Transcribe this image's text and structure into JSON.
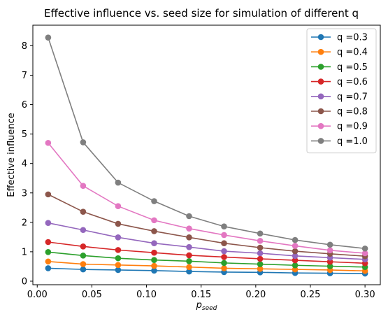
{
  "chart_data": {
    "type": "line",
    "title": "Effective influence vs. seed size for simulation of different q",
    "xlabel_main": "p",
    "xlabel_sub": "seed",
    "ylabel": "Effective influence",
    "xlim": [
      -0.004,
      0.314
    ],
    "ylim": [
      -0.12,
      8.7
    ],
    "xticks": [
      0.0,
      0.05,
      0.1,
      0.15,
      0.2,
      0.25,
      0.3
    ],
    "xtick_labels": [
      "0.00",
      "0.05",
      "0.10",
      "0.15",
      "0.20",
      "0.25",
      "0.30"
    ],
    "yticks": [
      0,
      1,
      2,
      3,
      4,
      5,
      6,
      7,
      8
    ],
    "ytick_labels": [
      "0",
      "1",
      "2",
      "3",
      "4",
      "5",
      "6",
      "7",
      "8"
    ],
    "grid": false,
    "legend_position": "top-right",
    "x": [
      0.01,
      0.042,
      0.074,
      0.107,
      0.139,
      0.171,
      0.204,
      0.236,
      0.268,
      0.3
    ],
    "series": [
      {
        "name": "q =0.3",
        "color": "#1f77b4",
        "values": [
          0.44,
          0.4,
          0.38,
          0.36,
          0.33,
          0.31,
          0.3,
          0.28,
          0.27,
          0.26
        ]
      },
      {
        "name": "q =0.4",
        "color": "#ff7f0e",
        "values": [
          0.67,
          0.58,
          0.55,
          0.52,
          0.48,
          0.44,
          0.42,
          0.4,
          0.38,
          0.35
        ]
      },
      {
        "name": "q =0.5",
        "color": "#2ca02c",
        "values": [
          0.99,
          0.87,
          0.78,
          0.72,
          0.68,
          0.62,
          0.58,
          0.54,
          0.51,
          0.48
        ]
      },
      {
        "name": "q =0.6",
        "color": "#d62728",
        "values": [
          1.33,
          1.18,
          1.06,
          0.97,
          0.88,
          0.82,
          0.76,
          0.71,
          0.66,
          0.61
        ]
      },
      {
        "name": "q =0.7",
        "color": "#9467bd",
        "values": [
          1.98,
          1.74,
          1.49,
          1.29,
          1.16,
          1.02,
          0.95,
          0.86,
          0.8,
          0.74
        ]
      },
      {
        "name": "q =0.8",
        "color": "#8c564b",
        "values": [
          2.95,
          2.36,
          1.95,
          1.7,
          1.49,
          1.29,
          1.14,
          1.02,
          0.93,
          0.85
        ]
      },
      {
        "name": "q =0.9",
        "color": "#e377c2",
        "values": [
          4.7,
          3.24,
          2.55,
          2.07,
          1.79,
          1.57,
          1.37,
          1.2,
          1.05,
          0.95
        ]
      },
      {
        "name": "q =1.0",
        "color": "#7f7f7f",
        "values": [
          8.28,
          4.72,
          3.35,
          2.72,
          2.21,
          1.86,
          1.62,
          1.4,
          1.24,
          1.11
        ]
      }
    ]
  }
}
